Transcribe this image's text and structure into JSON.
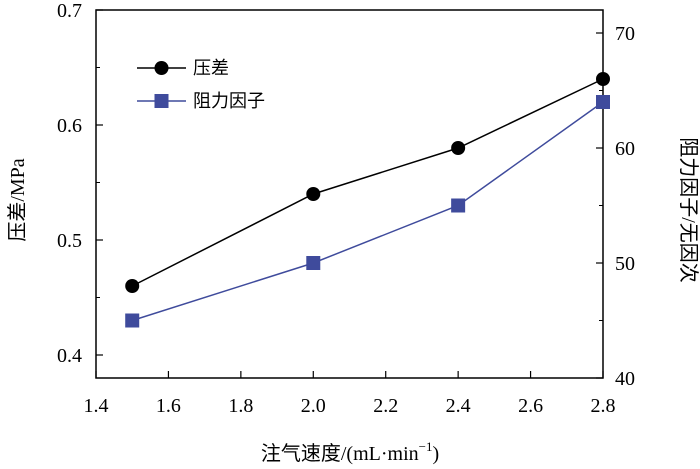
{
  "chart_data": {
    "type": "line",
    "x": [
      1.5,
      2.0,
      2.4,
      2.8
    ],
    "xlabel": "注气速度/(mL·min",
    "xlabel_sup": "−1",
    "xlabel_close": ")",
    "ylabel": "压差/MPa",
    "y2label": "阻力因子/无因次",
    "xlim": [
      1.4,
      2.8
    ],
    "ylim": [
      0.38,
      0.7
    ],
    "y2lim": [
      40,
      72
    ],
    "xticks": [
      "1.4",
      "1.6",
      "1.8",
      "2.0",
      "2.2",
      "2.4",
      "2.6",
      "2.8"
    ],
    "yticks": [
      "0.4",
      "0.5",
      "0.6",
      "0.7"
    ],
    "y2ticks": [
      "40",
      "50",
      "60",
      "70"
    ],
    "grid": false,
    "legend_position": "top-left",
    "series": [
      {
        "name": "压差",
        "axis": "left",
        "values": [
          0.46,
          0.54,
          0.58,
          0.64
        ],
        "marker": "circle",
        "color": "#000000"
      },
      {
        "name": "阻力因子",
        "axis": "right",
        "values": [
          45,
          50,
          55,
          64
        ],
        "marker": "square",
        "color": "#3f4b9c"
      }
    ]
  }
}
